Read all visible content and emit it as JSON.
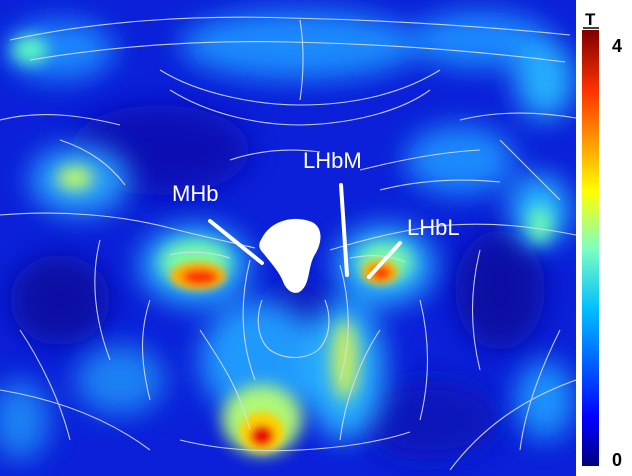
{
  "labels": {
    "mhb": "MHb",
    "lhbm": "LHbM",
    "lhbl": "LHbL"
  },
  "colorbar": {
    "title": "T",
    "max_label": "4",
    "min_label": "0",
    "range": [
      0,
      4
    ],
    "colormap": "jet"
  },
  "colors": {
    "background": "#0a1fd6",
    "outline": "#d8dde8",
    "label_text": "#ffffff"
  }
}
